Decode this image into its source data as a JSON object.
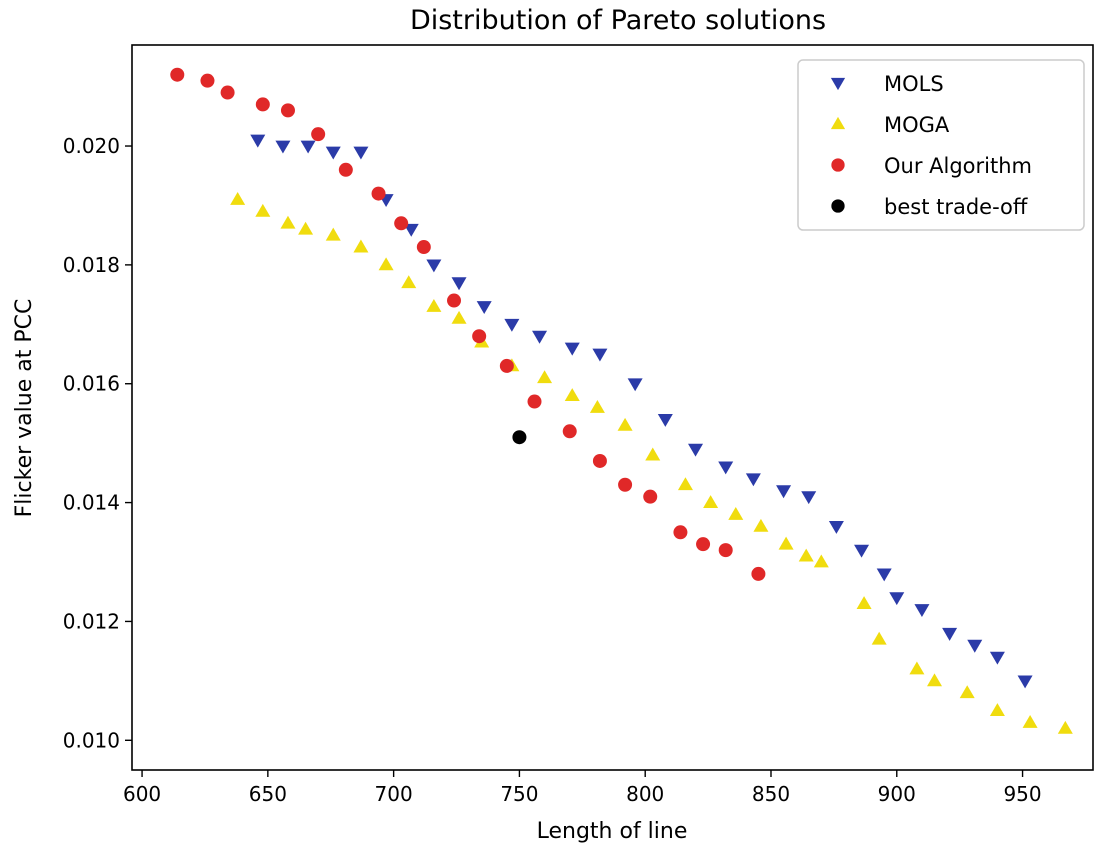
{
  "chart_data": {
    "type": "scatter",
    "title": "Distribution of Pareto solutions",
    "xlabel": "Length of line",
    "ylabel": "Flicker value at PCC",
    "xlim": [
      596,
      978
    ],
    "ylim": [
      0.0095,
      0.0217
    ],
    "xticks": [
      600,
      650,
      700,
      750,
      800,
      850,
      900,
      950
    ],
    "xtick_labels": [
      "600",
      "650",
      "700",
      "750",
      "800",
      "850",
      "900",
      "950"
    ],
    "yticks": [
      0.01,
      0.012,
      0.014,
      0.016,
      0.018,
      0.02
    ],
    "ytick_labels": [
      "0.010",
      "0.012",
      "0.014",
      "0.016",
      "0.018",
      "0.020"
    ],
    "legend_position": "top-right",
    "series": [
      {
        "name": "MOLS",
        "marker": "triangle-down",
        "color": "#2b3ba8",
        "x": [
          646,
          656,
          666,
          676,
          687,
          697,
          707,
          716,
          726,
          736,
          747,
          758,
          771,
          782,
          796,
          808,
          820,
          832,
          843,
          855,
          865,
          876,
          886,
          895,
          900,
          910,
          921,
          931,
          940,
          951
        ],
        "y": [
          0.0201,
          0.02,
          0.02,
          0.0199,
          0.0199,
          0.0191,
          0.0186,
          0.018,
          0.0177,
          0.0173,
          0.017,
          0.0168,
          0.0166,
          0.0165,
          0.016,
          0.0154,
          0.0149,
          0.0146,
          0.0144,
          0.0142,
          0.0141,
          0.0136,
          0.0132,
          0.0128,
          0.0124,
          0.0122,
          0.0118,
          0.0116,
          0.0114,
          0.011
        ]
      },
      {
        "name": "MOGA",
        "marker": "triangle-up",
        "color": "#f0dc0e",
        "x": [
          638,
          648,
          658,
          665,
          676,
          687,
          697,
          706,
          716,
          726,
          735,
          747,
          760,
          771,
          781,
          792,
          803,
          816,
          826,
          836,
          846,
          856,
          864,
          870,
          887,
          893,
          908,
          915,
          928,
          940,
          953,
          967
        ],
        "y": [
          0.0191,
          0.0189,
          0.0187,
          0.0186,
          0.0185,
          0.0183,
          0.018,
          0.0177,
          0.0173,
          0.0171,
          0.0167,
          0.0163,
          0.0161,
          0.0158,
          0.0156,
          0.0153,
          0.0148,
          0.0143,
          0.014,
          0.0138,
          0.0136,
          0.0133,
          0.0131,
          0.013,
          0.0123,
          0.0117,
          0.0112,
          0.011,
          0.0108,
          0.0105,
          0.0103,
          0.0102
        ]
      },
      {
        "name": "Our Algorithm",
        "marker": "circle",
        "color": "#e02828",
        "x": [
          614,
          626,
          634,
          648,
          658,
          670,
          681,
          694,
          703,
          712,
          724,
          734,
          745,
          756,
          770,
          782,
          792,
          802,
          814,
          823,
          832,
          845
        ],
        "y": [
          0.0212,
          0.0211,
          0.0209,
          0.0207,
          0.0206,
          0.0202,
          0.0196,
          0.0192,
          0.0187,
          0.0183,
          0.0174,
          0.0168,
          0.0163,
          0.0157,
          0.0152,
          0.0147,
          0.0143,
          0.0141,
          0.0135,
          0.0133,
          0.0132,
          0.0128
        ]
      },
      {
        "name": "best trade-off",
        "marker": "circle",
        "color": "#000000",
        "x": [
          750
        ],
        "y": [
          0.0151
        ]
      }
    ]
  }
}
